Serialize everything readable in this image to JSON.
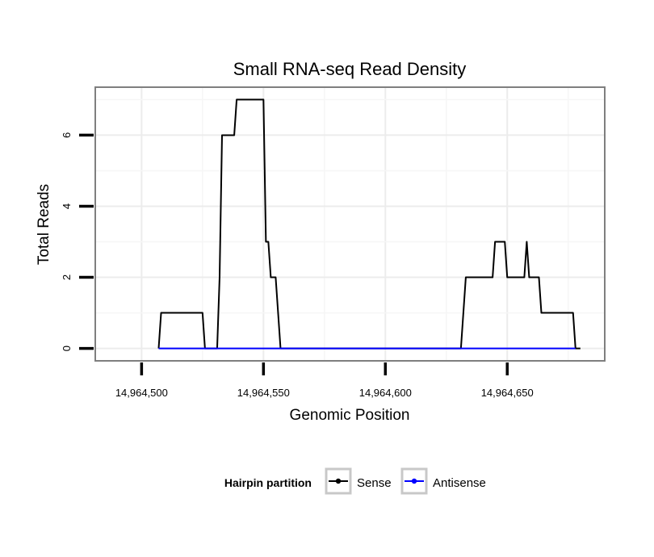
{
  "chart_data": {
    "type": "line",
    "title": "Small RNA-seq Read Density",
    "xlabel": "Genomic Position",
    "ylabel": "Total Reads",
    "xlim": [
      14964481,
      14964690
    ],
    "ylim": [
      -0.35,
      7.35
    ],
    "x_ticks": [
      14964500,
      14964550,
      14964600,
      14964650
    ],
    "x_tick_labels": [
      "14,964,500",
      "14,964,550",
      "14,964,600",
      "14,964,650"
    ],
    "y_ticks": [
      0,
      2,
      4,
      6
    ],
    "y_tick_labels": [
      "0",
      "2",
      "4",
      "6"
    ],
    "grid": true,
    "legend": {
      "title": "Hairpin partition",
      "position": "bottom",
      "entries": [
        "Sense",
        "Antisense"
      ]
    },
    "series": [
      {
        "name": "Sense",
        "color": "#000000",
        "points": [
          [
            14964507,
            0
          ],
          [
            14964508,
            1
          ],
          [
            14964525,
            1
          ],
          [
            14964526,
            0
          ],
          [
            14964531,
            0
          ],
          [
            14964532,
            2
          ],
          [
            14964533,
            6
          ],
          [
            14964538,
            6
          ],
          [
            14964539,
            7
          ],
          [
            14964550,
            7
          ],
          [
            14964551,
            3
          ],
          [
            14964552,
            3
          ],
          [
            14964553,
            2
          ],
          [
            14964555,
            2
          ],
          [
            14964557,
            0
          ],
          [
            14964631,
            0
          ],
          [
            14964633,
            2
          ],
          [
            14964644,
            2
          ],
          [
            14964645,
            3
          ],
          [
            14964649,
            3
          ],
          [
            14964650,
            2
          ],
          [
            14964657,
            2
          ],
          [
            14964658,
            3
          ],
          [
            14964659,
            2
          ],
          [
            14964663,
            2
          ],
          [
            14964664,
            1
          ],
          [
            14964677,
            1
          ],
          [
            14964678,
            0
          ],
          [
            14964680,
            0
          ]
        ]
      },
      {
        "name": "Antisense",
        "color": "#0000ff",
        "points": [
          [
            14964507,
            0
          ],
          [
            14964678,
            0
          ]
        ]
      }
    ]
  }
}
